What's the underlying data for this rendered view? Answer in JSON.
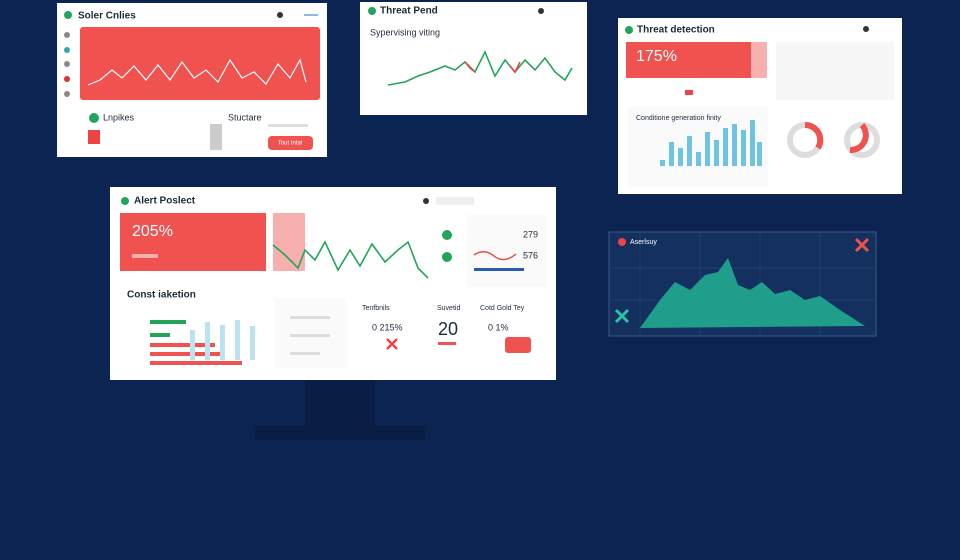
{
  "panels": [
    {
      "title": "Soler Cnlies",
      "labels": [
        "Lnpikes",
        "Stuctare"
      ],
      "button": "Tout Intal"
    },
    {
      "title": "Threat Pend",
      "subtitle": "Sypervising viting"
    },
    {
      "title": "Threat detection",
      "metric": "175%",
      "chart_title": "Conditione generation finity"
    },
    {
      "title": "Alert Poslect",
      "metric": "205%",
      "section": "Const iaketion",
      "cards": [
        "Tenfbnils",
        "Suvetid",
        "Cotd Gold Tey"
      ],
      "values": [
        "0 215%",
        "20",
        "0 1%",
        "279",
        "576"
      ]
    },
    {
      "title": "Aserlsuy"
    }
  ]
}
